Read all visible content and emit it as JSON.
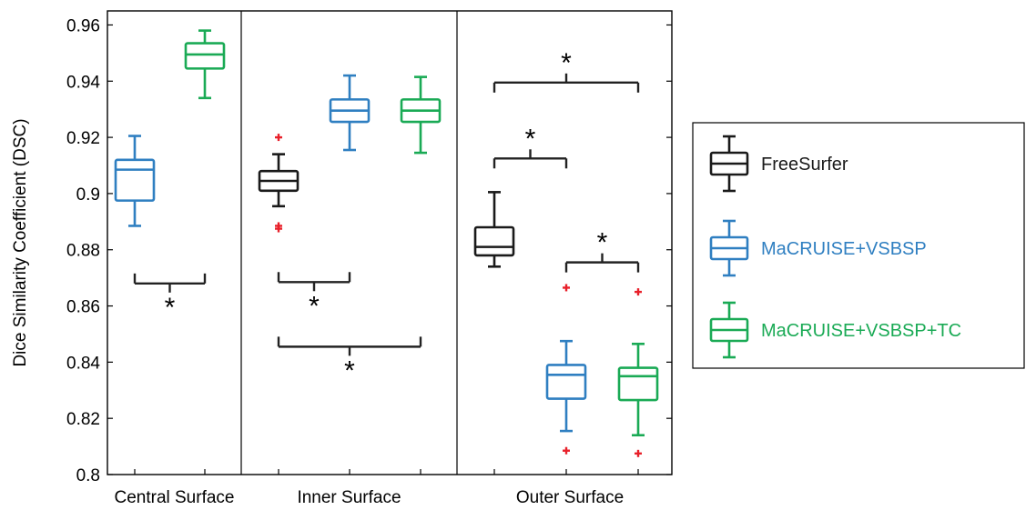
{
  "chart_data": {
    "type": "box",
    "ylabel": "Dice Similarity Coefficient (DSC)",
    "ylim": [
      0.8,
      0.965
    ],
    "yticks": [
      0.8,
      0.82,
      0.84,
      0.86,
      0.88,
      0.9,
      0.92,
      0.94,
      0.96
    ],
    "ytick_labels": [
      "0.8",
      "0.82",
      "0.84",
      "0.86",
      "0.88",
      "0.9",
      "0.92",
      "0.94",
      "0.96"
    ],
    "groups": [
      {
        "label": "Central Surface",
        "boxes": [
          {
            "series": "MaCRUISE+VSBSP",
            "whisker_low": 0.8885,
            "q1": 0.8975,
            "median": 0.9085,
            "q3": 0.912,
            "whisker_high": 0.9205,
            "outliers": []
          },
          {
            "series": "MaCRUISE+VSBSP+TC",
            "whisker_low": 0.934,
            "q1": 0.9445,
            "median": 0.9495,
            "q3": 0.9535,
            "whisker_high": 0.958,
            "outliers": []
          }
        ],
        "significance": [
          {
            "from": 0,
            "to": 1,
            "level": 0.868,
            "dir": "down",
            "marker": "*"
          }
        ]
      },
      {
        "label": "Inner Surface",
        "boxes": [
          {
            "series": "FreeSurfer",
            "whisker_low": 0.8955,
            "q1": 0.901,
            "median": 0.9045,
            "q3": 0.908,
            "whisker_high": 0.914,
            "outliers": [
              0.92,
              0.8885,
              0.8875
            ]
          },
          {
            "series": "MaCRUISE+VSBSP",
            "whisker_low": 0.9155,
            "q1": 0.9255,
            "median": 0.9295,
            "q3": 0.9335,
            "whisker_high": 0.942,
            "outliers": []
          },
          {
            "series": "MaCRUISE+VSBSP+TC",
            "whisker_low": 0.9145,
            "q1": 0.9255,
            "median": 0.9295,
            "q3": 0.9335,
            "whisker_high": 0.9415,
            "outliers": []
          }
        ],
        "significance": [
          {
            "from": 0,
            "to": 1,
            "level": 0.8685,
            "dir": "down",
            "marker": "*"
          },
          {
            "from": 0,
            "to": 2,
            "level": 0.8455,
            "dir": "down",
            "marker": "*"
          }
        ]
      },
      {
        "label": "Outer Surface",
        "boxes": [
          {
            "series": "FreeSurfer",
            "whisker_low": 0.874,
            "q1": 0.878,
            "median": 0.881,
            "q3": 0.888,
            "whisker_high": 0.9005,
            "outliers": []
          },
          {
            "series": "MaCRUISE+VSBSP",
            "whisker_low": 0.8155,
            "q1": 0.827,
            "median": 0.8355,
            "q3": 0.839,
            "whisker_high": 0.8475,
            "outliers": [
              0.8665,
              0.8085
            ]
          },
          {
            "series": "MaCRUISE+VSBSP+TC",
            "whisker_low": 0.814,
            "q1": 0.8265,
            "median": 0.835,
            "q3": 0.838,
            "whisker_high": 0.8465,
            "outliers": [
              0.865,
              0.8075
            ]
          }
        ],
        "significance": [
          {
            "from": 0,
            "to": 1,
            "level": 0.9125,
            "dir": "up",
            "marker": "*"
          },
          {
            "from": 1,
            "to": 2,
            "level": 0.8755,
            "dir": "up",
            "marker": "*"
          },
          {
            "from": 0,
            "to": 2,
            "level": 0.9395,
            "dir": "up",
            "marker": "*"
          }
        ]
      }
    ],
    "series": [
      {
        "name": "FreeSurfer",
        "color": "#1a1a1a"
      },
      {
        "name": "MaCRUISE+VSBSP",
        "color": "#2f7fc1"
      },
      {
        "name": "MaCRUISE+VSBSP+TC",
        "color": "#1aaa55"
      }
    ],
    "outlier_color": "#e8202a",
    "legend_placement": "right",
    "grid": false
  }
}
